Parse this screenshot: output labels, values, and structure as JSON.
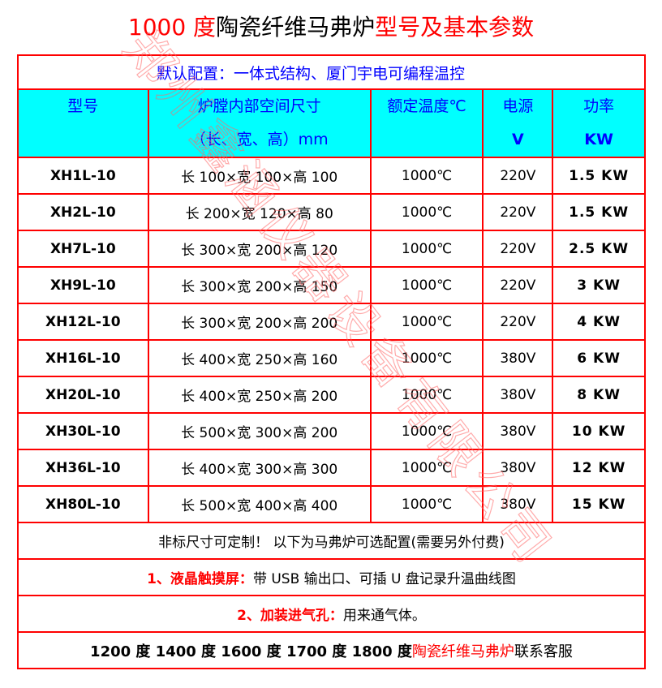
{
  "title": {
    "part1": "1000 度",
    "part2": "陶瓷纤维马弗炉",
    "part3": "型号及基本参数"
  },
  "config": "默认配置：一体式结构、厦门宇电可编程温控",
  "headers": {
    "model": "型号",
    "size1": "炉膛内部空间尺寸",
    "size2": "（长、宽、高）mm",
    "temp": "额定温度℃",
    "power1": "电源",
    "power2": "V",
    "watt1": "功率",
    "watt2": "KW"
  },
  "rows": [
    {
      "model": "XH1L-10",
      "size": "长 100×宽 100×高 100",
      "temp": "1000℃",
      "voltage": "220V",
      "power": "1.5 KW"
    },
    {
      "model": "XH2L-10",
      "size": "长 200×宽 120×高 80",
      "temp": "1000℃",
      "voltage": "220V",
      "power": "1.5 KW"
    },
    {
      "model": "XH7L-10",
      "size": "长 300×宽 200×高 120",
      "temp": "1000℃",
      "voltage": "220V",
      "power": "2.5 KW"
    },
    {
      "model": "XH9L-10",
      "size": "长 300×宽 200×高 150",
      "temp": "1000℃",
      "voltage": "220V",
      "power": "3 KW"
    },
    {
      "model": "XH12L-10",
      "size": "长 300×宽 200×高 200",
      "temp": "1000℃",
      "voltage": "220V",
      "power": "4 KW"
    },
    {
      "model": "XH16L-10",
      "size": "长 400×宽 250×高 160",
      "temp": "1000℃",
      "voltage": "380V",
      "power": "6 KW"
    },
    {
      "model": "XH20L-10",
      "size": "长 400×宽 250×高 200",
      "temp": "1000℃",
      "voltage": "380V",
      "power": "8 KW"
    },
    {
      "model": "XH30L-10",
      "size": "长 500×宽 300×高 200",
      "temp": "1000℃",
      "voltage": "380V",
      "power": "10 KW"
    },
    {
      "model": "XH36L-10",
      "size": "长 400×宽 300×高 300",
      "temp": "1000℃",
      "voltage": "380V",
      "power": "12 KW"
    },
    {
      "model": "XH80L-10",
      "size": "长 500×宽 400×高 400",
      "temp": "1000℃",
      "voltage": "380V",
      "power": "15 KW"
    }
  ],
  "notes": {
    "custom": "非标尺寸可定制！  以下为马弗炉可选配置(需要另外付费)",
    "opt1_label": "1、液晶触摸屏：",
    "opt1_text": "带 USB 输出口、可插 U 盘记录升温曲线图",
    "opt2_label": "2、加装进气孔：",
    "opt2_text": "用来通气体。",
    "contact_a": "1200 度 1400 度 1600 度 1700 度 1800 度",
    "contact_b": "陶瓷纤维马弗炉",
    "contact_c": "联系客服"
  },
  "watermark": "郑州鑫涵仪器设备有限公司",
  "colors": {
    "border": "#ff0000",
    "header_bg": "#00ffff",
    "header_text": "#0000ff"
  }
}
